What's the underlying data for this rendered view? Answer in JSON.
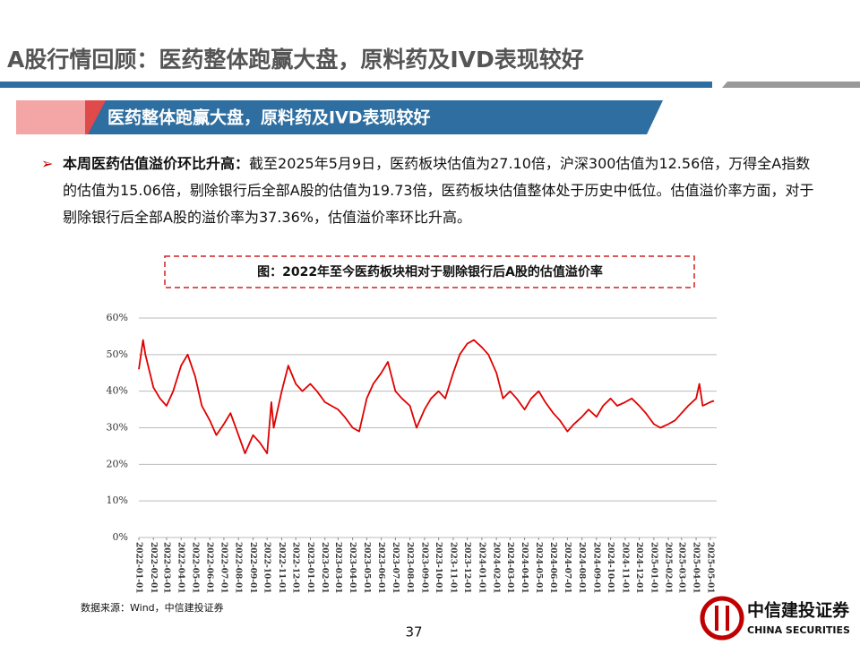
{
  "header": {
    "title": "A股行情回顾：医药整体跑赢大盘，原料药及IVD表现较好",
    "banner": "医药整体跑赢大盘，原料药及IVD表现较好"
  },
  "bullet": {
    "lead": "本周医药估值溢价环比升高：",
    "text": "截至2025年5月9日，医药板块估值为27.10倍，沪深300估值为12.56倍，万得全A指数的估值为15.06倍，剔除银行后全部A股的估值为19.73倍，医药板块估值整体处于历史中低位。估值溢价率方面，对于剔除银行后全部A股的溢价率为37.36%，估值溢价率环比升高。"
  },
  "chart_data": {
    "type": "line",
    "title": "图：2022年至今医药板块相对于剔除银行后A股的估值溢价率",
    "x": [
      "2022-01-01",
      "2022-01-10",
      "2022-01-15",
      "2022-02-01",
      "2022-02-15",
      "2022-03-01",
      "2022-03-15",
      "2022-04-01",
      "2022-04-15",
      "2022-05-01",
      "2022-05-15",
      "2022-06-01",
      "2022-06-15",
      "2022-07-01",
      "2022-07-15",
      "2022-08-01",
      "2022-08-15",
      "2022-09-01",
      "2022-09-15",
      "2022-10-01",
      "2022-10-10",
      "2022-10-15",
      "2022-11-01",
      "2022-11-15",
      "2022-12-01",
      "2022-12-15",
      "2023-01-01",
      "2023-01-15",
      "2023-02-01",
      "2023-02-15",
      "2023-03-01",
      "2023-03-15",
      "2023-04-01",
      "2023-04-15",
      "2023-05-01",
      "2023-05-15",
      "2023-06-01",
      "2023-06-15",
      "2023-07-01",
      "2023-07-15",
      "2023-08-01",
      "2023-08-15",
      "2023-09-01",
      "2023-09-15",
      "2023-10-01",
      "2023-10-15",
      "2023-11-01",
      "2023-11-15",
      "2023-12-01",
      "2023-12-15",
      "2024-01-01",
      "2024-01-15",
      "2024-02-01",
      "2024-02-15",
      "2024-03-01",
      "2024-03-15",
      "2024-04-01",
      "2024-04-15",
      "2024-05-01",
      "2024-05-15",
      "2024-06-01",
      "2024-06-15",
      "2024-07-01",
      "2024-07-15",
      "2024-08-01",
      "2024-08-15",
      "2024-09-01",
      "2024-09-15",
      "2024-10-01",
      "2024-10-15",
      "2024-11-01",
      "2024-11-15",
      "2024-12-01",
      "2024-12-15",
      "2025-01-01",
      "2025-01-15",
      "2025-02-01",
      "2025-02-15",
      "2025-03-01",
      "2025-03-15",
      "2025-04-01",
      "2025-04-08",
      "2025-04-15",
      "2025-05-01",
      "2025-05-09"
    ],
    "series": [
      {
        "name": "估值溢价率",
        "color": "#e00000",
        "values": [
          46,
          54,
          50,
          41,
          38,
          36,
          40,
          47,
          50,
          44,
          36,
          32,
          28,
          31,
          34,
          28,
          23,
          28,
          26,
          23,
          37,
          30,
          40,
          47,
          42,
          40,
          42,
          40,
          37,
          36,
          35,
          33,
          30,
          29,
          38,
          42,
          45,
          48,
          40,
          38,
          36,
          30,
          35,
          38,
          40,
          38,
          45,
          50,
          53,
          54,
          52,
          50,
          45,
          38,
          40,
          38,
          35,
          38,
          40,
          37,
          34,
          32,
          29,
          31,
          33,
          35,
          33,
          36,
          38,
          36,
          37,
          38,
          36,
          34,
          31,
          30,
          31,
          32,
          34,
          36,
          38,
          42,
          36,
          37,
          37.36
        ]
      }
    ],
    "xlim": [
      "2022-01-01",
      "2025-05-09"
    ],
    "xticks": [
      "2022-01-01",
      "2022-02-01",
      "2022-03-01",
      "2022-04-01",
      "2022-05-01",
      "2022-06-01",
      "2022-07-01",
      "2022-08-01",
      "2022-09-01",
      "2022-10-01",
      "2022-11-01",
      "2022-12-01",
      "2023-01-01",
      "2023-02-01",
      "2023-03-01",
      "2023-04-01",
      "2023-05-01",
      "2023-06-01",
      "2023-07-01",
      "2023-08-01",
      "2023-09-01",
      "2023-10-01",
      "2023-11-01",
      "2023-12-01",
      "2024-01-01",
      "2024-02-01",
      "2024-03-01",
      "2024-04-01",
      "2024-05-01",
      "2024-06-01",
      "2024-07-01",
      "2024-08-01",
      "2024-09-01",
      "2024-10-01",
      "2024-11-01",
      "2024-12-01",
      "2025-01-01",
      "2025-02-01",
      "2025-03-01",
      "2025-04-01",
      "2025-05-01"
    ],
    "ylim": [
      0,
      60
    ],
    "yticks": [
      {
        "value": 0,
        "label": "0%"
      },
      {
        "value": 10,
        "label": "10%"
      },
      {
        "value": 20,
        "label": "20%"
      },
      {
        "value": 30,
        "label": "30%"
      },
      {
        "value": 40,
        "label": "40%"
      },
      {
        "value": 50,
        "label": "50%"
      },
      {
        "value": 60,
        "label": "60%"
      }
    ],
    "grid": true
  },
  "footer": {
    "source": "数据来源：Wind，中信建投证券",
    "page": "37",
    "logo": "中信建投证券",
    "logo_en": "CHINA SECURITIES"
  }
}
